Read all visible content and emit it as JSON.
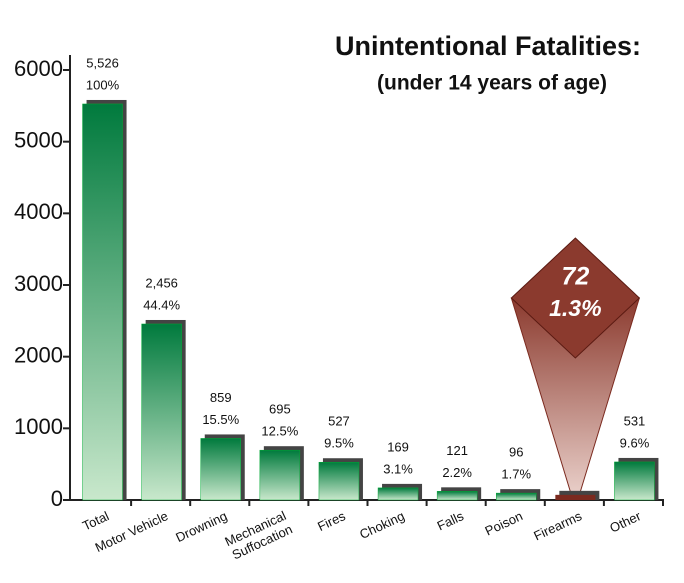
{
  "chart_data": {
    "type": "bar",
    "title": "Unintentional Fatalities:",
    "subtitle": "(under 14 years of age)",
    "categories": [
      "Total",
      "Motor Vehicle",
      "Drowning",
      "Mechanical Suffocation",
      "Fires",
      "Choking",
      "Falls",
      "Poison",
      "Firearms",
      "Other"
    ],
    "values": [
      5526,
      2456,
      859,
      695,
      527,
      169,
      121,
      96,
      72,
      531
    ],
    "value_labels": [
      "5,526",
      "2,456",
      "859",
      "695",
      "527",
      "169",
      "121",
      "96",
      "72",
      "531"
    ],
    "percents": [
      100,
      44.4,
      15.5,
      12.5,
      9.5,
      3.1,
      2.2,
      1.7,
      1.3,
      9.6
    ],
    "percent_labels": [
      "100%",
      "44.4%",
      "15.5%",
      "12.5%",
      "9.5%",
      "3.1%",
      "2.2%",
      "1.7%",
      "1.3%",
      "9.6%"
    ],
    "color": "#007a3d",
    "highlight": "Firearms",
    "highlight_color": "#7b2a1f",
    "ylim": [
      0,
      6000
    ],
    "yticks": [
      0,
      1000,
      2000,
      3000,
      4000,
      5000,
      6000
    ]
  }
}
